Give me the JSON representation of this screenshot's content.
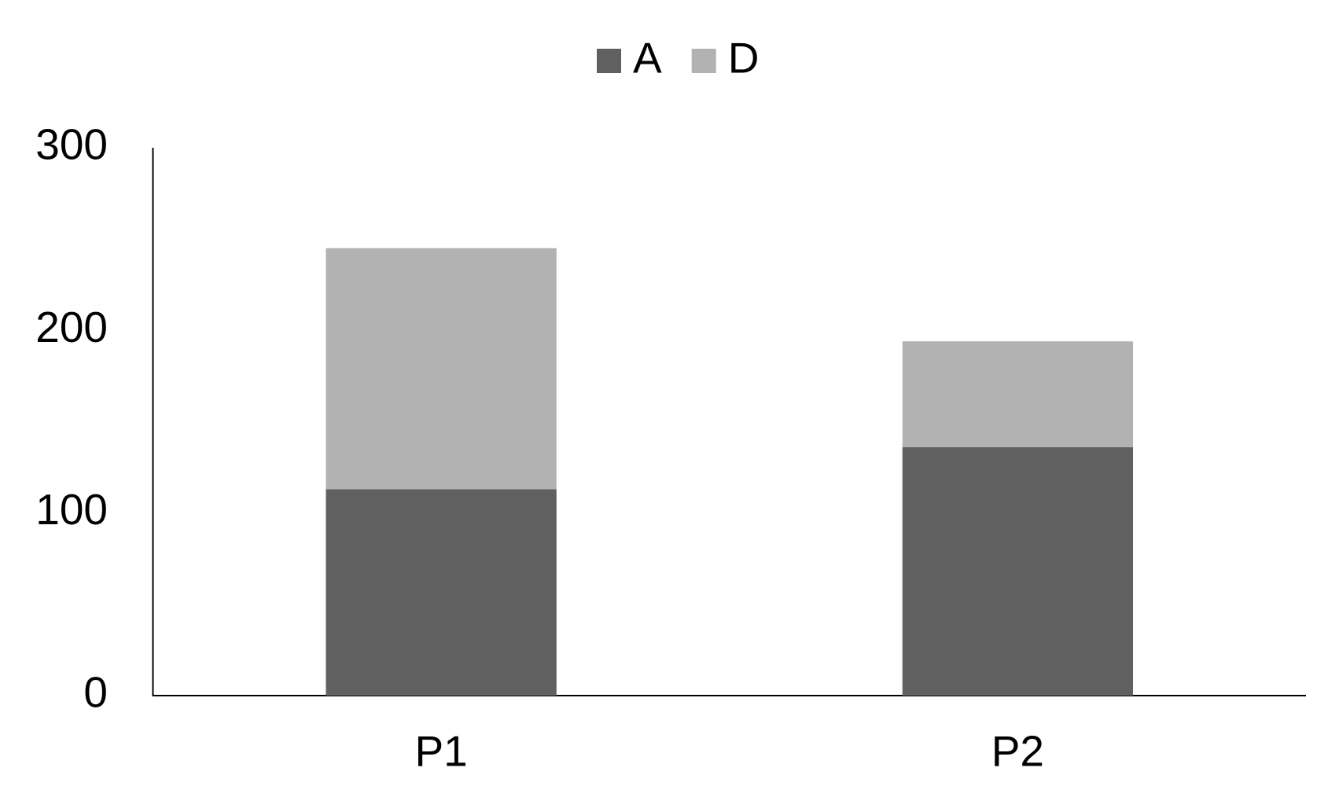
{
  "chart_data": {
    "type": "bar",
    "stacked": true,
    "categories": [
      "P1",
      "P2"
    ],
    "series": [
      {
        "name": "A",
        "color": "#606060",
        "values": [
          113,
          136
        ]
      },
      {
        "name": "D",
        "color": "#b2b2b2",
        "values": [
          132,
          58
        ]
      }
    ],
    "ylim": [
      0,
      300
    ],
    "yticks": [
      0,
      100,
      200,
      300
    ],
    "grid": false,
    "legend": "top"
  }
}
